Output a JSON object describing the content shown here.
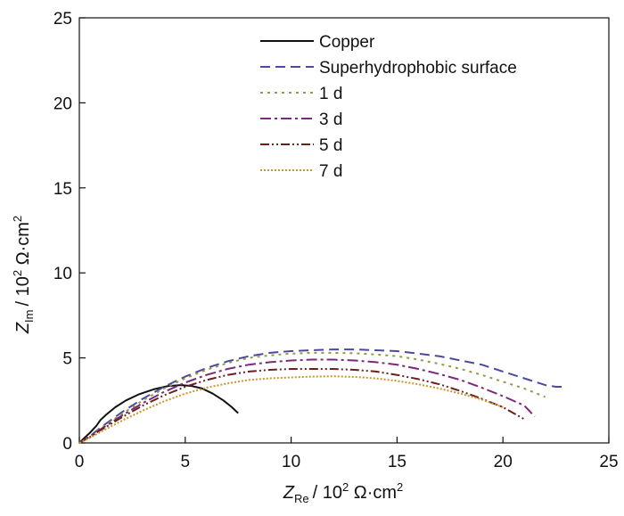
{
  "chart_data": {
    "type": "line",
    "xlabel": {
      "symbol": "Z",
      "sub": "Re",
      "unit_prefix": "/ 10",
      "sup": "2",
      "unit": " Ω·cm",
      "unit_sup": "2"
    },
    "ylabel": {
      "symbol": "Z",
      "sub": "Im",
      "unit_prefix": "/ 10",
      "sup": "2",
      "unit": " Ω·cm",
      "unit_sup": "2"
    },
    "xlim": [
      0,
      25
    ],
    "ylim": [
      0,
      25
    ],
    "xticks": [
      0,
      5,
      10,
      15,
      20,
      25
    ],
    "yticks": [
      0,
      5,
      10,
      15,
      20,
      25
    ],
    "grid": false,
    "legend_position": "top-center",
    "series": [
      {
        "name": "Copper",
        "color": "#111111",
        "dash": "",
        "points": [
          [
            0,
            0
          ],
          [
            0.2,
            0.25
          ],
          [
            0.5,
            0.6
          ],
          [
            0.8,
            1.0
          ],
          [
            1.0,
            1.35
          ],
          [
            1.3,
            1.7
          ],
          [
            1.7,
            2.1
          ],
          [
            2.2,
            2.5
          ],
          [
            2.8,
            2.85
          ],
          [
            3.5,
            3.15
          ],
          [
            4.2,
            3.35
          ],
          [
            4.8,
            3.4
          ],
          [
            5.3,
            3.35
          ],
          [
            5.8,
            3.2
          ],
          [
            6.3,
            2.9
          ],
          [
            6.8,
            2.5
          ],
          [
            7.2,
            2.1
          ],
          [
            7.5,
            1.75
          ]
        ]
      },
      {
        "name": "Superhydrophobic surface",
        "color": "#4a4a9e",
        "dash": "11,6",
        "points": [
          [
            0,
            0
          ],
          [
            0.5,
            0.4
          ],
          [
            1,
            0.9
          ],
          [
            2,
            1.8
          ],
          [
            3,
            2.6
          ],
          [
            4,
            3.3
          ],
          [
            5,
            3.9
          ],
          [
            6,
            4.4
          ],
          [
            7,
            4.8
          ],
          [
            8,
            5.1
          ],
          [
            9,
            5.3
          ],
          [
            10,
            5.4
          ],
          [
            11,
            5.45
          ],
          [
            12,
            5.5
          ],
          [
            13,
            5.5
          ],
          [
            14,
            5.45
          ],
          [
            15,
            5.4
          ],
          [
            16,
            5.25
          ],
          [
            17,
            5.1
          ],
          [
            18,
            4.85
          ],
          [
            19,
            4.6
          ],
          [
            20,
            4.2
          ],
          [
            21,
            3.8
          ],
          [
            22,
            3.4
          ],
          [
            22.5,
            3.3
          ],
          [
            23,
            3.3
          ]
        ]
      },
      {
        "name": "1 d",
        "color": "#8f9a4a",
        "dash": "3,5",
        "points": [
          [
            0,
            0
          ],
          [
            0.5,
            0.4
          ],
          [
            1,
            0.85
          ],
          [
            2,
            1.7
          ],
          [
            3,
            2.5
          ],
          [
            4,
            3.2
          ],
          [
            5,
            3.8
          ],
          [
            6,
            4.3
          ],
          [
            7,
            4.7
          ],
          [
            8,
            5.0
          ],
          [
            9,
            5.15
          ],
          [
            10,
            5.25
          ],
          [
            11,
            5.3
          ],
          [
            12,
            5.3
          ],
          [
            13,
            5.28
          ],
          [
            14,
            5.2
          ],
          [
            15,
            5.1
          ],
          [
            16,
            4.9
          ],
          [
            17,
            4.65
          ],
          [
            18,
            4.35
          ],
          [
            19,
            4.0
          ],
          [
            20,
            3.6
          ],
          [
            21,
            3.2
          ],
          [
            22,
            2.7
          ]
        ]
      },
      {
        "name": "3 d",
        "color": "#7a2a7a",
        "dash": "12,4,3,4",
        "points": [
          [
            0,
            0
          ],
          [
            0.5,
            0.38
          ],
          [
            1,
            0.8
          ],
          [
            2,
            1.6
          ],
          [
            3,
            2.35
          ],
          [
            4,
            3.0
          ],
          [
            5,
            3.55
          ],
          [
            6,
            4.0
          ],
          [
            7,
            4.35
          ],
          [
            8,
            4.6
          ],
          [
            9,
            4.75
          ],
          [
            10,
            4.85
          ],
          [
            11,
            4.9
          ],
          [
            12,
            4.9
          ],
          [
            13,
            4.85
          ],
          [
            14,
            4.75
          ],
          [
            15,
            4.6
          ],
          [
            16,
            4.35
          ],
          [
            17,
            4.05
          ],
          [
            18,
            3.7
          ],
          [
            19,
            3.25
          ],
          [
            20,
            2.75
          ],
          [
            21,
            2.2
          ],
          [
            21.5,
            1.55
          ]
        ]
      },
      {
        "name": "5 d",
        "color": "#6a2020",
        "dash": "10,3,2,3,2,3",
        "points": [
          [
            0,
            0
          ],
          [
            0.5,
            0.35
          ],
          [
            1,
            0.75
          ],
          [
            2,
            1.5
          ],
          [
            3,
            2.2
          ],
          [
            4,
            2.8
          ],
          [
            5,
            3.3
          ],
          [
            6,
            3.7
          ],
          [
            7,
            4.0
          ],
          [
            8,
            4.2
          ],
          [
            9,
            4.3
          ],
          [
            10,
            4.35
          ],
          [
            11,
            4.35
          ],
          [
            12,
            4.35
          ],
          [
            13,
            4.3
          ],
          [
            14,
            4.2
          ],
          [
            15,
            4.0
          ],
          [
            16,
            3.75
          ],
          [
            17,
            3.45
          ],
          [
            18,
            3.05
          ],
          [
            19,
            2.6
          ],
          [
            20,
            2.1
          ],
          [
            21,
            1.4
          ]
        ]
      },
      {
        "name": "7 d",
        "color": "#c8962a",
        "dash": "2,2",
        "points": [
          [
            0,
            0
          ],
          [
            0.5,
            0.3
          ],
          [
            1,
            0.65
          ],
          [
            2,
            1.3
          ],
          [
            3,
            1.9
          ],
          [
            4,
            2.45
          ],
          [
            5,
            2.9
          ],
          [
            6,
            3.25
          ],
          [
            7,
            3.5
          ],
          [
            8,
            3.7
          ],
          [
            9,
            3.8
          ],
          [
            10,
            3.85
          ],
          [
            11,
            3.9
          ],
          [
            12,
            3.92
          ],
          [
            13,
            3.88
          ],
          [
            14,
            3.8
          ],
          [
            15,
            3.65
          ],
          [
            16,
            3.45
          ],
          [
            17,
            3.2
          ],
          [
            18,
            2.9
          ],
          [
            19,
            2.55
          ],
          [
            20,
            2.1
          ]
        ]
      }
    ]
  }
}
